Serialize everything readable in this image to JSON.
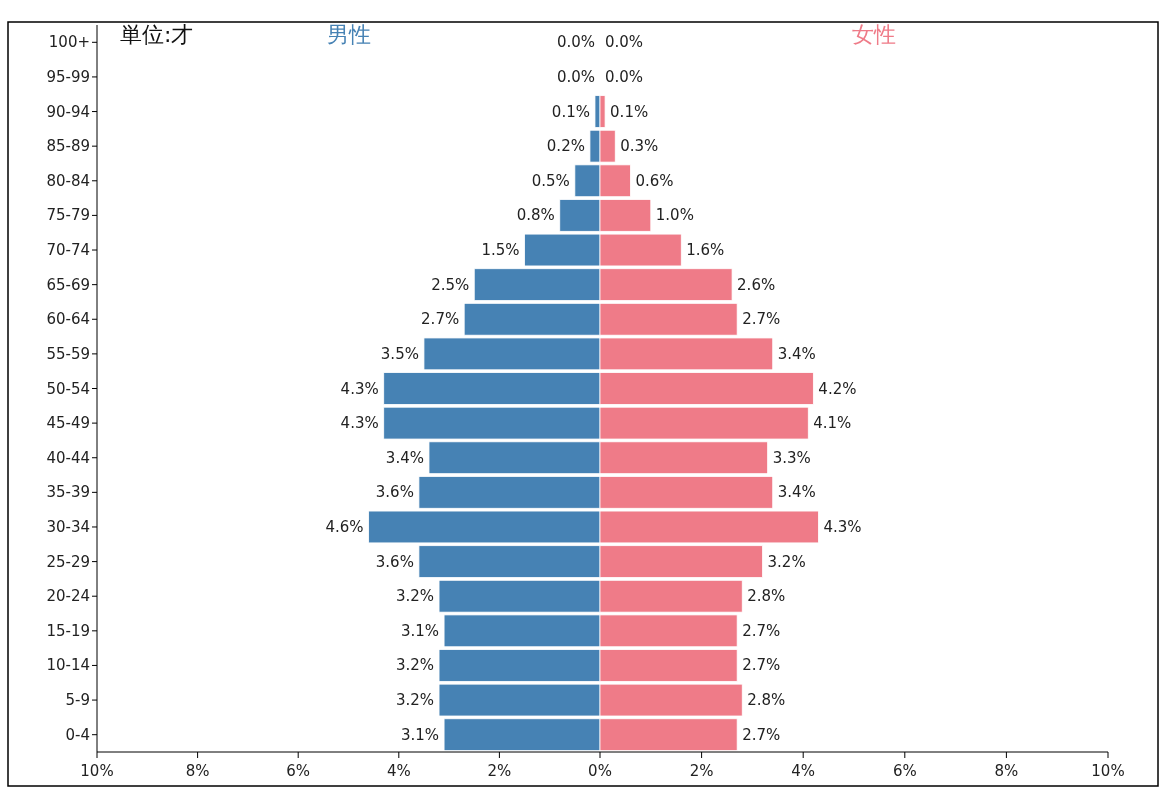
{
  "chart_data": [
    {
      "type": "bar",
      "orientation": "horizontal",
      "annotations": [
        "単位:才"
      ],
      "categories": [
        "100+",
        "95-99",
        "90-94",
        "85-89",
        "80-84",
        "75-79",
        "70-74",
        "65-69",
        "60-64",
        "55-59",
        "50-54",
        "45-49",
        "40-44",
        "35-39",
        "30-34",
        "25-29",
        "20-24",
        "15-19",
        "10-14",
        "5-9",
        "0-4"
      ],
      "series": [
        {
          "name": "男性",
          "color": "#4682b4",
          "values": [
            0.0,
            0.0,
            0.1,
            0.2,
            0.5,
            0.8,
            1.5,
            2.5,
            2.7,
            3.5,
            4.3,
            4.3,
            3.4,
            3.6,
            4.6,
            3.6,
            3.2,
            3.1,
            3.2,
            3.2,
            3.1
          ],
          "value_labels": [
            "0.0%",
            "0.0%",
            "0.1%",
            "0.2%",
            "0.5%",
            "0.8%",
            "1.5%",
            "2.5%",
            "2.7%",
            "3.5%",
            "4.3%",
            "4.3%",
            "3.4%",
            "3.6%",
            "4.6%",
            "3.6%",
            "3.2%",
            "3.1%",
            "3.2%",
            "3.2%",
            "3.1%"
          ]
        }
      ],
      "xlim": [
        10,
        0
      ],
      "xticks": [
        {
          "value": 10,
          "label": "10%"
        },
        {
          "value": 8,
          "label": "8%"
        },
        {
          "value": 6,
          "label": "6%"
        },
        {
          "value": 4,
          "label": "4%"
        },
        {
          "value": 2,
          "label": "2%"
        },
        {
          "value": 0,
          "label": "0%"
        }
      ]
    },
    {
      "type": "bar",
      "orientation": "horizontal",
      "tick_labels": "x",
      "categories": [
        null,
        null,
        null,
        null,
        null,
        null,
        null,
        null,
        null,
        null,
        null,
        null,
        null,
        null,
        null,
        null,
        null,
        null,
        null,
        null,
        null
      ],
      "series": [
        {
          "name": "女性",
          "color": "#ef7b88",
          "values": [
            0.0,
            0.0,
            0.1,
            0.3,
            0.6,
            1.0,
            1.6,
            2.6,
            2.7,
            3.4,
            4.2,
            4.1,
            3.3,
            3.4,
            4.3,
            3.2,
            2.8,
            2.7,
            2.7,
            2.8,
            2.7
          ],
          "value_labels": [
            "0.0%",
            "0.0%",
            "0.1%",
            "0.3%",
            "0.6%",
            "1.0%",
            "1.6%",
            "2.6%",
            "2.7%",
            "3.4%",
            "4.2%",
            "4.1%",
            "3.3%",
            "3.4%",
            "4.3%",
            "3.2%",
            "2.8%",
            "2.7%",
            "2.7%",
            "2.8%",
            "2.7%"
          ]
        }
      ],
      "xlim": [
        0,
        10
      ],
      "xticks": [
        {
          "value": 2,
          "label": "2%"
        },
        {
          "value": 4,
          "label": "4%"
        },
        {
          "value": 6,
          "label": "6%"
        },
        {
          "value": 8,
          "label": "8%"
        },
        {
          "value": 10,
          "label": "10%"
        }
      ]
    }
  ]
}
